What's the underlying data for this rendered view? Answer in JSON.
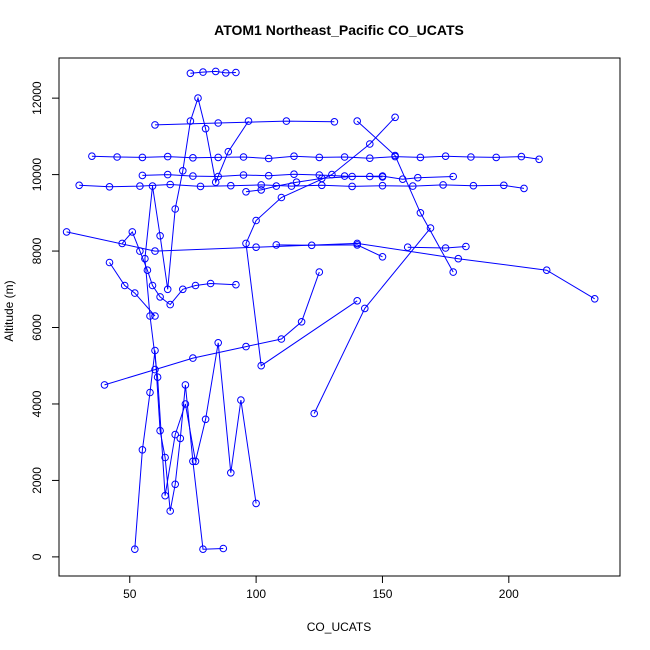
{
  "chart_data": {
    "type": "scatter",
    "title": "ATOM1 Northeast_Pacific CO_UCATS",
    "xlabel": "CO_UCATS",
    "ylabel": "Altitude (m)",
    "xlim": [
      22,
      244
    ],
    "ylim": [
      -500,
      13050
    ],
    "x_ticks": [
      50,
      100,
      150,
      200
    ],
    "y_ticks": [
      0,
      2000,
      4000,
      6000,
      8000,
      10000,
      12000
    ],
    "x_tick_labels": [
      "50",
      "100",
      "150",
      "200"
    ],
    "y_tick_labels": [
      "0",
      "2000",
      "4000",
      "6000",
      "8000",
      "10000",
      "12000"
    ],
    "grid": false,
    "legend": "none",
    "series_color": "#0000ff",
    "series": [
      {
        "x": [
          52,
          55,
          58,
          60,
          62,
          64,
          66,
          68,
          70,
          72,
          75,
          79,
          87
        ],
        "y": [
          200,
          2800,
          4300,
          5400,
          3300,
          2600,
          1200,
          1900,
          3100,
          4500,
          2500,
          200,
          220
        ]
      },
      {
        "x": [
          100,
          94,
          90,
          85,
          80,
          76,
          72,
          68,
          64,
          61,
          58,
          56,
          59,
          62,
          65,
          68,
          71,
          74,
          77,
          80,
          84,
          89,
          97
        ],
        "y": [
          1400,
          4100,
          2200,
          5600,
          3600,
          2500,
          4000,
          3200,
          1600,
          4700,
          6300,
          7800,
          9700,
          8400,
          7000,
          9100,
          10100,
          11400,
          12000,
          11200,
          9800,
          10600,
          11400
        ]
      },
      {
        "x": [
          74,
          79,
          84,
          88,
          92
        ],
        "y": [
          12650,
          12680,
          12700,
          12660,
          12670
        ]
      },
      {
        "x": [
          35,
          45,
          55,
          65,
          75,
          85,
          95,
          105,
          115,
          125,
          135,
          145,
          155,
          165,
          175,
          185,
          195,
          205,
          212
        ],
        "y": [
          10480,
          10460,
          10450,
          10470,
          10440,
          10450,
          10460,
          10420,
          10480,
          10450,
          10460,
          10430,
          10470,
          10450,
          10480,
          10460,
          10450,
          10470,
          10400
        ]
      },
      {
        "x": [
          30,
          42,
          54,
          66,
          78,
          90,
          102,
          114,
          126,
          138,
          150,
          162,
          174,
          186,
          198,
          206
        ],
        "y": [
          9720,
          9680,
          9700,
          9740,
          9690,
          9710,
          9730,
          9700,
          9720,
          9690,
          9710,
          9700,
          9730,
          9710,
          9720,
          9640
        ]
      },
      {
        "x": [
          55,
          65,
          75,
          85,
          95,
          105,
          115,
          125,
          135,
          145,
          150
        ],
        "y": [
          9980,
          10000,
          9960,
          9950,
          9990,
          9970,
          10010,
          9990,
          9960,
          9950,
          9940
        ]
      },
      {
        "x": [
          25,
          60,
          100,
          140,
          180,
          215,
          234
        ],
        "y": [
          8500,
          8000,
          8100,
          8200,
          7800,
          7500,
          6750
        ]
      },
      {
        "x": [
          108,
          122,
          140,
          150
        ],
        "y": [
          8160,
          8150,
          8160,
          7850
        ]
      },
      {
        "x": [
          160,
          175,
          183
        ],
        "y": [
          8100,
          8080,
          8120
        ]
      },
      {
        "x": [
          155,
          145,
          130,
          110,
          100,
          96,
          102,
          140
        ],
        "y": [
          11500,
          10800,
          10000,
          9400,
          8800,
          8200,
          5000,
          6700
        ]
      },
      {
        "x": [
          123,
          143,
          169
        ],
        "y": [
          3750,
          6500,
          8600
        ]
      },
      {
        "x": [
          178,
          165,
          155,
          140
        ],
        "y": [
          7450,
          9000,
          10500,
          11400
        ]
      },
      {
        "x": [
          40,
          60,
          75,
          96,
          110,
          118,
          125
        ],
        "y": [
          4500,
          4900,
          5200,
          5500,
          5700,
          6150,
          7450
        ]
      },
      {
        "x": [
          42,
          48,
          52,
          60
        ],
        "y": [
          7700,
          7100,
          6900,
          6300
        ]
      },
      {
        "x": [
          60,
          85,
          112,
          131
        ],
        "y": [
          11300,
          11350,
          11400,
          11380
        ]
      },
      {
        "x": [
          47,
          51,
          54,
          57,
          59,
          62,
          66,
          71,
          76,
          82,
          92
        ],
        "y": [
          8200,
          8500,
          8000,
          7500,
          7100,
          6800,
          6600,
          7000,
          7100,
          7150,
          7120
        ]
      },
      {
        "x": [
          96,
          102,
          108,
          116,
          126,
          138,
          150,
          158,
          164,
          178
        ],
        "y": [
          9550,
          9600,
          9700,
          9800,
          9900,
          9950,
          9960,
          9880,
          9920,
          9950
        ]
      }
    ]
  }
}
